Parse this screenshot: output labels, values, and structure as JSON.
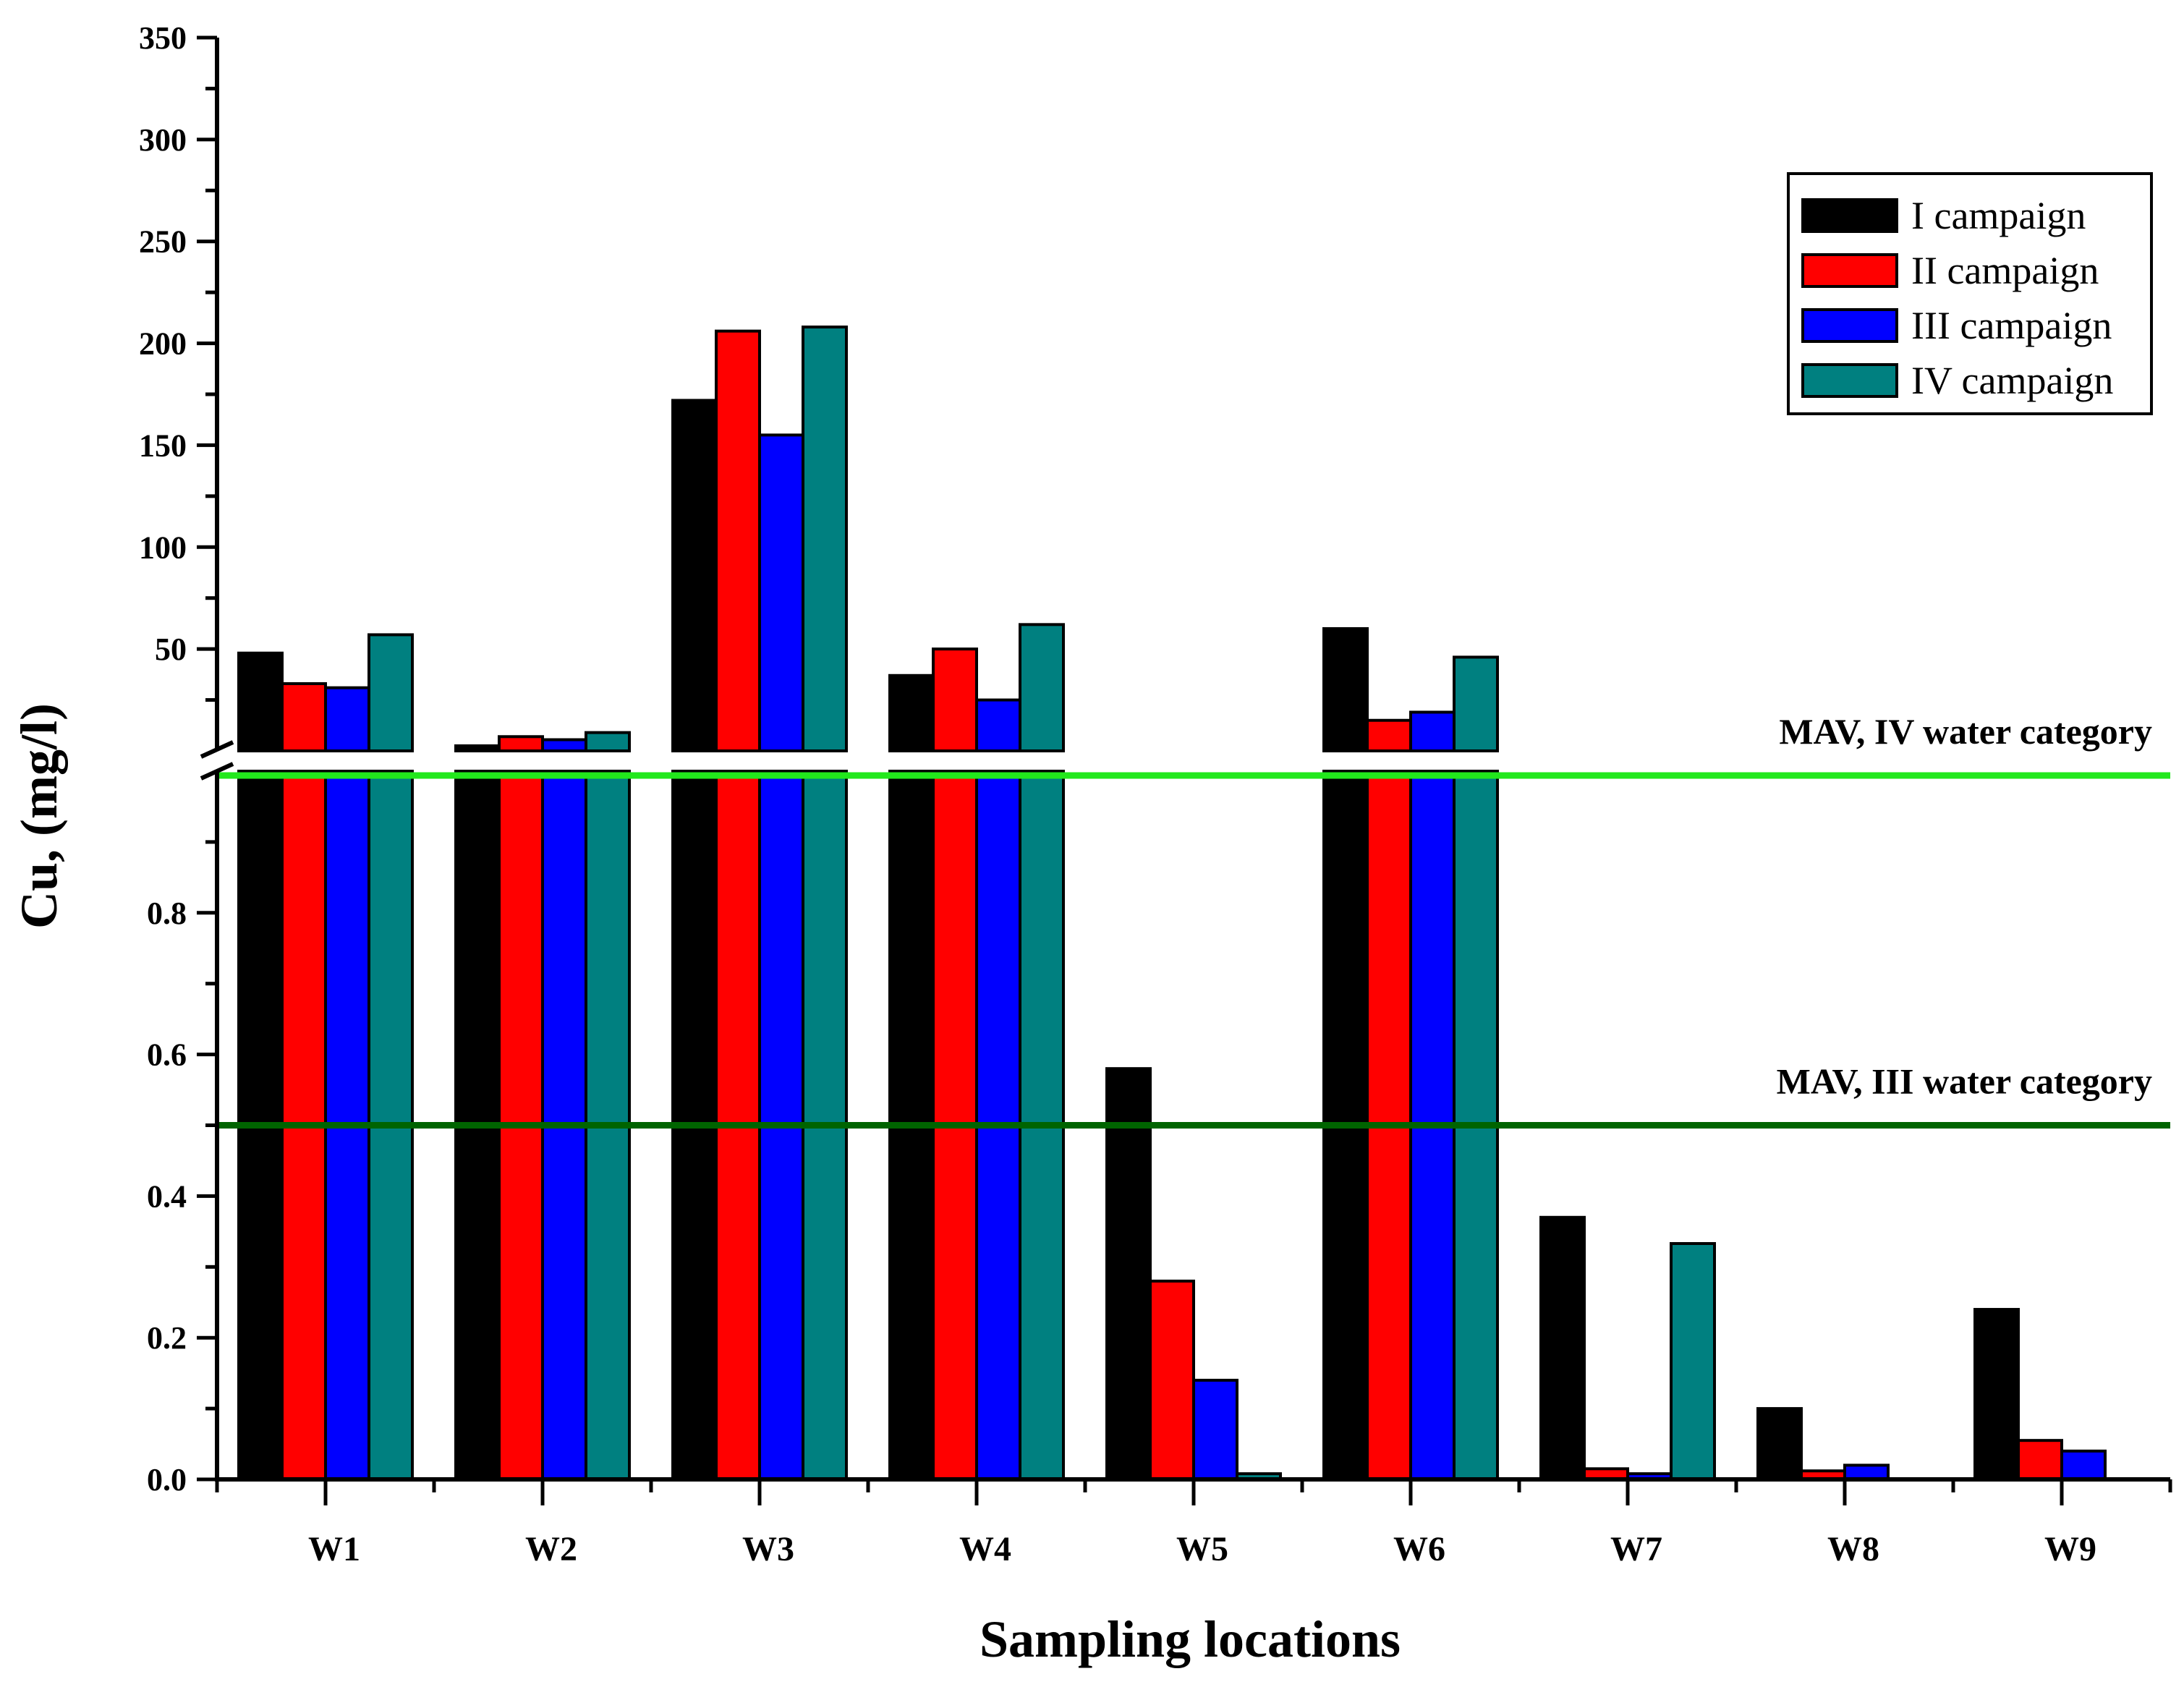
{
  "chart_data": {
    "type": "bar",
    "xlabel": "Sampling locations",
    "ylabel": "Cu, (mg/l)",
    "categories": [
      "W1",
      "W2",
      "W3",
      "W4",
      "W5",
      "W6",
      "W7",
      "W8",
      "W9"
    ],
    "series": [
      {
        "name": "I campaign",
        "color": "#000000",
        "values": [
          48,
          2.5,
          172,
          37,
          0.58,
          60,
          0.37,
          0.1,
          0.24
        ]
      },
      {
        "name": "II campaign",
        "color": "#ff0000",
        "values": [
          33,
          7,
          206,
          50,
          0.28,
          15,
          0.015,
          0.012,
          0.055
        ]
      },
      {
        "name": "III campaign",
        "color": "#0000ff",
        "values": [
          31,
          5.5,
          155,
          25,
          0.14,
          19,
          0.008,
          0.02,
          0.04
        ]
      },
      {
        "name": "IV campaign",
        "color": "#008080",
        "values": [
          57,
          9,
          208,
          62,
          0.008,
          46,
          0.333,
          0.001,
          0
        ]
      }
    ],
    "y_axis_lower": {
      "range": [
        0,
        1.0
      ],
      "ticks": [
        0.0,
        0.2,
        0.4,
        0.6,
        0.8
      ],
      "tick_labels": [
        "0.0",
        "0.2",
        "0.4",
        "0.6",
        "0.8"
      ]
    },
    "y_axis_upper": {
      "range": [
        0,
        350
      ],
      "ticks": [
        50,
        100,
        150,
        200,
        250,
        300,
        350
      ],
      "tick_labels": [
        "50",
        "100",
        "150",
        "200",
        "250",
        "300",
        "350"
      ]
    },
    "reference_lines": [
      {
        "label": "MAV, IV water category",
        "value": 1.0,
        "color": "#22e81c"
      },
      {
        "label": "MAV, III water category",
        "value": 0.5,
        "color": "#006400"
      }
    ],
    "legend_position": "top-right"
  }
}
